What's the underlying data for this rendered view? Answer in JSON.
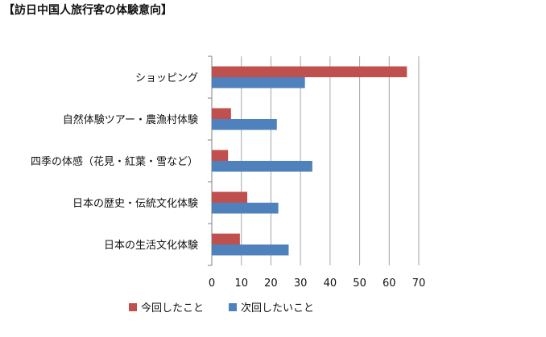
{
  "page": {
    "title": "【訪日中国人旅行客の体験意向】"
  },
  "chart_data": {
    "type": "bar",
    "orientation": "horizontal",
    "title": "",
    "xlabel": "",
    "ylabel": "",
    "categories": [
      "ショッピング",
      "自然体験ツアー・農漁村体験",
      "四季の体感（花見・紅葉・雪など）",
      "日本の歴史・伝統文化体験",
      "日本の生活文化体験"
    ],
    "series": [
      {
        "name": "今回したこと",
        "color": "#c0504d",
        "values": [
          66,
          6.5,
          5.5,
          12,
          9.5
        ]
      },
      {
        "name": "次回したいこと",
        "color": "#4f81bd",
        "values": [
          31.5,
          22,
          34,
          22.5,
          26
        ]
      }
    ],
    "xlim": [
      0,
      70
    ],
    "xticks": [
      0,
      10,
      20,
      30,
      40,
      50,
      60,
      70
    ],
    "grid": true,
    "legend_position": "bottom"
  }
}
